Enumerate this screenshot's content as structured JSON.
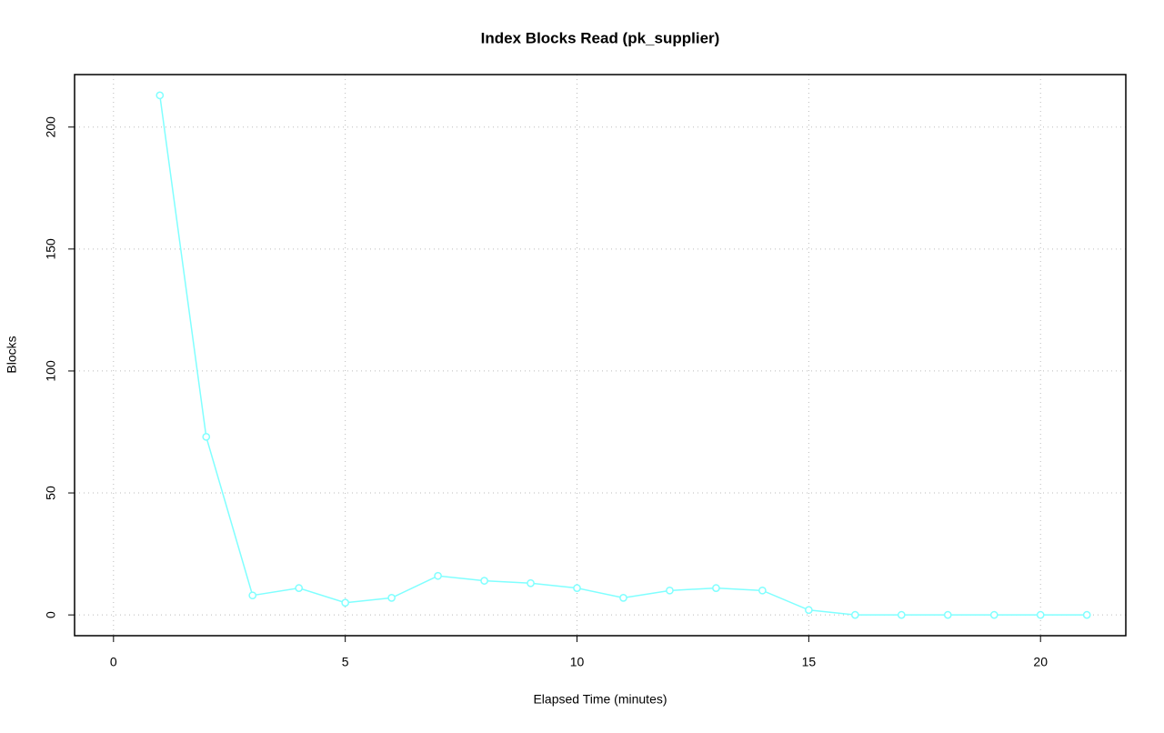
{
  "chart_data": {
    "type": "line",
    "title": "Index Blocks Read (pk_supplier)",
    "x_label": "Elapsed Time (minutes)",
    "y_label": "Blocks",
    "x": [
      1,
      2,
      3,
      4,
      5,
      6,
      7,
      8,
      9,
      10,
      11,
      12,
      13,
      14,
      15,
      16,
      17,
      18,
      19,
      20,
      21
    ],
    "series": [
      {
        "color": "#80ffff",
        "values": [
          213,
          73,
          8,
          11,
          5,
          7,
          16,
          14,
          13,
          11,
          7,
          10,
          11,
          10,
          2,
          0,
          0,
          0,
          0,
          0,
          0
        ]
      }
    ],
    "xlim": [
      -0.84,
      21.84
    ],
    "xticks": [
      0,
      5,
      10,
      15,
      20
    ],
    "ylim": [
      -8.52,
      221.52
    ],
    "yticks": [
      0,
      50,
      100,
      150,
      200
    ],
    "grid": true
  }
}
